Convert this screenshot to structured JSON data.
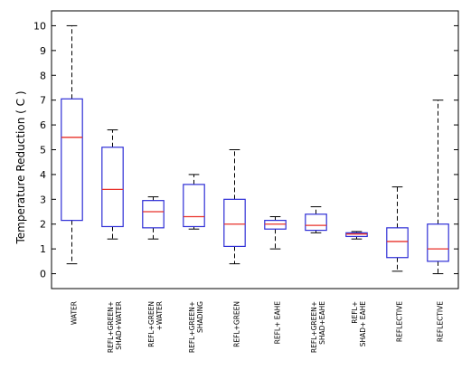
{
  "chart_data": {
    "type": "boxplot",
    "title": "",
    "xlabel": "",
    "ylabel": "Temperature Reduction ( C )",
    "ylim": [
      -0.6,
      10.6
    ],
    "yticks": [
      0,
      1,
      2,
      3,
      4,
      5,
      6,
      7,
      8,
      9,
      10
    ],
    "grid": false,
    "colors": {
      "box": "#2e2ed6",
      "median": "#e8302a",
      "whisker": "#000000"
    },
    "categories": [
      {
        "label_lines": [
          "WATER"
        ],
        "min": 0.4,
        "q1": 2.15,
        "median": 5.5,
        "q3": 7.05,
        "max": 10.0
      },
      {
        "label_lines": [
          "REFL+GREEN+",
          "SHAD+WATER"
        ],
        "min": 1.4,
        "q1": 1.9,
        "median": 3.4,
        "q3": 5.1,
        "max": 5.8
      },
      {
        "label_lines": [
          "REFL+GREEN",
          "+WATER"
        ],
        "min": 1.4,
        "q1": 1.85,
        "median": 2.5,
        "q3": 2.95,
        "max": 3.1
      },
      {
        "label_lines": [
          "REFL+GREEN+",
          "SHADING"
        ],
        "min": 1.8,
        "q1": 1.9,
        "median": 2.3,
        "q3": 3.6,
        "max": 4.0
      },
      {
        "label_lines": [
          "REFL+GREEN"
        ],
        "min": 0.4,
        "q1": 1.1,
        "median": 2.0,
        "q3": 3.0,
        "max": 5.0
      },
      {
        "label_lines": [
          "REFL+ EAHE"
        ],
        "min": 1.0,
        "q1": 1.8,
        "median": 2.0,
        "q3": 2.15,
        "max": 2.3
      },
      {
        "label_lines": [
          "REFL+GREEN+",
          "SHAD+EAHE"
        ],
        "min": 1.65,
        "q1": 1.75,
        "median": 1.95,
        "q3": 2.4,
        "max": 2.7
      },
      {
        "label_lines": [
          "REFL+",
          "SHAD+ EAHE"
        ],
        "min": 1.4,
        "q1": 1.5,
        "median": 1.6,
        "q3": 1.65,
        "max": 1.7
      },
      {
        "label_lines": [
          "REFLECTIVE"
        ],
        "min": 0.1,
        "q1": 0.65,
        "median": 1.3,
        "q3": 1.85,
        "max": 3.5
      },
      {
        "label_lines": [
          "REFLECTIVE"
        ],
        "min": 0.0,
        "q1": 0.5,
        "median": 1.0,
        "q3": 2.0,
        "max": 7.0
      }
    ]
  }
}
